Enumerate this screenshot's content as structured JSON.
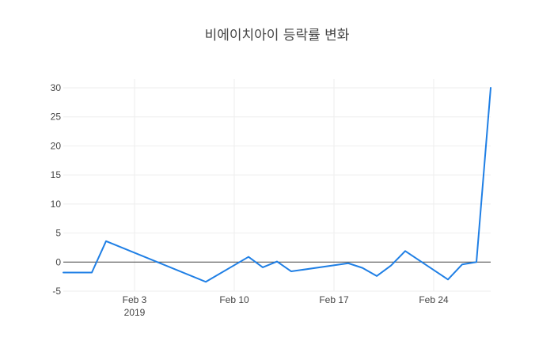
{
  "chart_data": {
    "type": "line",
    "title": "비에이치아이 등락률 변화",
    "xlabel": "",
    "ylabel": "",
    "ylim": [
      -5,
      31.5
    ],
    "yticks": [
      -5,
      0,
      5,
      10,
      15,
      20,
      25,
      30
    ],
    "xlim": [
      "2019-01-29",
      "2019-02-28"
    ],
    "xticks": [
      {
        "date": "2019-02-03",
        "label": "Feb 3",
        "sublabel": "2019"
      },
      {
        "date": "2019-02-10",
        "label": "Feb 10",
        "sublabel": ""
      },
      {
        "date": "2019-02-17",
        "label": "Feb 17",
        "sublabel": ""
      },
      {
        "date": "2019-02-24",
        "label": "Feb 24",
        "sublabel": ""
      }
    ],
    "grid": true,
    "color": "#1f7fe5",
    "series": [
      {
        "x": [
          "2019-01-29",
          "2019-01-30",
          "2019-01-31",
          "2019-02-01",
          "2019-02-08",
          "2019-02-11",
          "2019-02-12",
          "2019-02-13",
          "2019-02-14",
          "2019-02-18",
          "2019-02-19",
          "2019-02-20",
          "2019-02-21",
          "2019-02-22",
          "2019-02-25",
          "2019-02-26",
          "2019-02-27",
          "2019-02-28"
        ],
        "y": [
          -1.8,
          -1.8,
          -1.8,
          3.6,
          -3.4,
          0.9,
          -0.9,
          0.1,
          -1.6,
          -0.2,
          -1.0,
          -2.4,
          -0.6,
          1.9,
          -3.0,
          -0.4,
          0.0,
          30.0
        ]
      }
    ]
  }
}
